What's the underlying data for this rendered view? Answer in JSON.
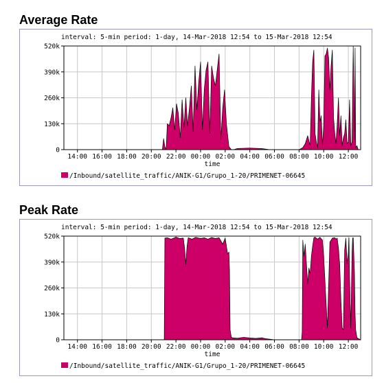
{
  "chart_data": [
    {
      "type": "area",
      "title": "Average Rate",
      "subtitle": "interval: 5-min  period: 1-day, 14-Mar-2018 12:54 to 15-Mar-2018 12:54",
      "xlabel": "time",
      "ylabel": "",
      "xlim": [
        12.9,
        37.0
      ],
      "ylim": [
        0,
        520000
      ],
      "y_ticks": [
        "0",
        "130k",
        "260k",
        "390k",
        "520k"
      ],
      "x_ticks": [
        "14:00",
        "16:00",
        "18:00",
        "20:00",
        "22:00",
        "00:00",
        "02:00",
        "04:00",
        "06:00",
        "08:00",
        "10:00",
        "12:00"
      ],
      "color": "#cc0066",
      "grid": true,
      "legend": "bottom-left",
      "series": [
        {
          "name": "/Inbound/satellite_traffic/ANIK-G1/Grupo_1-20/PRIMENET-06645",
          "x": [
            12.9,
            20.9,
            21.0,
            21.1,
            21.2,
            21.3,
            21.45,
            21.6,
            21.75,
            21.9,
            22.05,
            22.2,
            22.35,
            22.5,
            22.65,
            22.8,
            22.95,
            23.1,
            23.25,
            23.4,
            23.55,
            23.7,
            23.85,
            24.0,
            24.15,
            24.3,
            24.45,
            24.6,
            24.75,
            24.9,
            25.05,
            25.2,
            25.35,
            25.5,
            25.65,
            25.8,
            25.95,
            26.1,
            26.3,
            26.5,
            26.7,
            27.0,
            28.0,
            29.0,
            29.6,
            30.0,
            31.0,
            32.0,
            32.3,
            32.5,
            32.7,
            32.9,
            33.0,
            33.1,
            33.2,
            33.3,
            33.4,
            33.5,
            33.6,
            33.7,
            33.8,
            33.9,
            34.0,
            34.1,
            34.2,
            34.3,
            34.4,
            34.5,
            34.6,
            34.7,
            34.8,
            34.9,
            35.0,
            35.1,
            35.2,
            35.3,
            35.4,
            35.5,
            35.6,
            35.7,
            35.8,
            35.9,
            36.0,
            36.1,
            36.2,
            36.3,
            36.4,
            36.45,
            36.5,
            36.55,
            36.6,
            36.7,
            36.8,
            37.0
          ],
          "values": [
            0,
            0,
            55000,
            15000,
            0,
            130000,
            120000,
            160000,
            210000,
            100000,
            230000,
            180000,
            60000,
            250000,
            110000,
            260000,
            120000,
            210000,
            320000,
            90000,
            420000,
            200000,
            340000,
            440000,
            100000,
            300000,
            400000,
            440000,
            80000,
            420000,
            360000,
            320000,
            400000,
            480000,
            50000,
            210000,
            300000,
            130000,
            15000,
            0,
            0,
            6000,
            8000,
            5000,
            0,
            0,
            0,
            0,
            10000,
            30000,
            70000,
            20000,
            260000,
            440000,
            500000,
            80000,
            40000,
            10000,
            300000,
            140000,
            170000,
            20000,
            120000,
            470000,
            480000,
            510000,
            460000,
            300000,
            420000,
            500000,
            160000,
            80000,
            30000,
            130000,
            260000,
            70000,
            170000,
            20000,
            60000,
            80000,
            150000,
            30000,
            40000,
            250000,
            20000,
            40000,
            520000,
            300000,
            50000,
            510000,
            10000,
            20000,
            0,
            0
          ]
        }
      ]
    },
    {
      "type": "area",
      "title": "Peak Rate",
      "subtitle": "interval: 5-min  period: 1-day, 14-Mar-2018 12:54 to 15-Mar-2018 12:54",
      "xlabel": "time",
      "ylabel": "",
      "xlim": [
        12.9,
        37.0
      ],
      "ylim": [
        0,
        520000
      ],
      "y_ticks": [
        "0",
        "130k",
        "260k",
        "390k",
        "520k"
      ],
      "x_ticks": [
        "14:00",
        "16:00",
        "18:00",
        "20:00",
        "22:00",
        "00:00",
        "02:00",
        "04:00",
        "06:00",
        "08:00",
        "10:00",
        "12:00"
      ],
      "color": "#cc0066",
      "grid": true,
      "legend": "bottom-left",
      "series": [
        {
          "name": "/Inbound/satellite_traffic/ANIK-G1/Grupo_1-20/PRIMENET-06645",
          "x": [
            12.9,
            21.0,
            21.05,
            21.1,
            21.3,
            21.6,
            22.0,
            22.3,
            22.6,
            22.7,
            22.8,
            22.9,
            23.0,
            23.3,
            23.6,
            24.0,
            24.3,
            24.6,
            24.9,
            25.2,
            25.5,
            25.8,
            26.0,
            26.2,
            26.3,
            26.35,
            26.4,
            26.5,
            26.6,
            26.7,
            27.0,
            27.5,
            28.0,
            28.5,
            29.0,
            29.1,
            29.3,
            30.0,
            32.0,
            32.2,
            32.25,
            32.3,
            32.4,
            32.5,
            32.6,
            32.7,
            32.8,
            32.9,
            33.0,
            33.1,
            33.2,
            33.3,
            33.5,
            33.7,
            33.9,
            34.0,
            34.1,
            34.3,
            34.5,
            34.7,
            34.9,
            35.0,
            35.1,
            35.2,
            35.3,
            35.4,
            35.5,
            35.6,
            35.7,
            35.8,
            35.9,
            36.0,
            36.05,
            36.1,
            36.2,
            36.3,
            36.35,
            36.4,
            36.5,
            36.55,
            36.6,
            36.7,
            37.0
          ],
          "values": [
            0,
            0,
            0,
            510000,
            512000,
            505000,
            515000,
            508000,
            510000,
            460000,
            380000,
            470000,
            512000,
            505000,
            514000,
            508000,
            512000,
            505000,
            513000,
            508000,
            512000,
            480000,
            510000,
            430000,
            440000,
            350000,
            50000,
            12000,
            10000,
            9000,
            8000,
            12000,
            9000,
            7000,
            10000,
            8000,
            5000,
            0,
            0,
            0,
            40000,
            500000,
            420000,
            480000,
            380000,
            280000,
            360000,
            330000,
            420000,
            470000,
            512000,
            515000,
            505000,
            514000,
            500000,
            420000,
            300000,
            60000,
            490000,
            510000,
            512000,
            505000,
            510000,
            460000,
            380000,
            200000,
            60000,
            50000,
            450000,
            510000,
            380000,
            440000,
            512000,
            310000,
            60000,
            440000,
            510000,
            512000,
            340000,
            130000,
            50000,
            10000,
            0
          ]
        }
      ]
    }
  ]
}
